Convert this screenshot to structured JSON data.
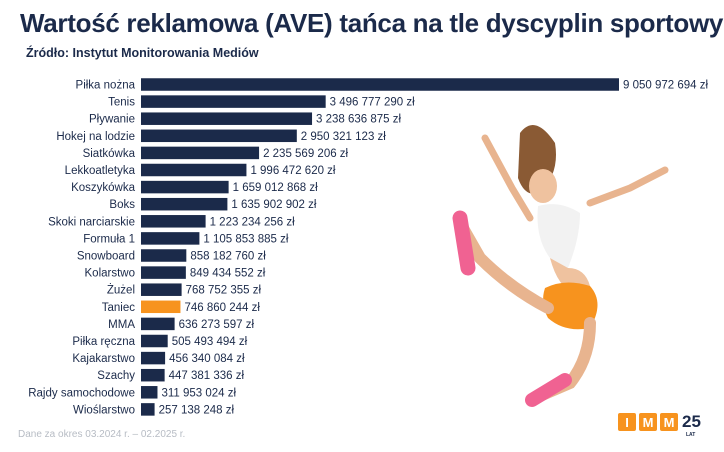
{
  "title": "Wartość reklamowa (AVE) tańca na tle dyscyplin sportowych",
  "subtitle": "Źródło: Instytut Monitorowania Mediów",
  "footnote": "Dane za okres 03.2024 r. – 02.2025 r.",
  "logo": {
    "letters": [
      "I",
      "M",
      "M"
    ],
    "number": "25",
    "suffix": "LAT"
  },
  "colors": {
    "bar": "#1b2a4a",
    "highlight": "#f7931e",
    "text": "#1b2a4a",
    "brand": "#f7931e"
  },
  "chart_data": {
    "type": "bar",
    "orientation": "horizontal",
    "value_format": "space-thousands + zł",
    "highlight": "Taniec",
    "categories": [
      "Piłka nożna",
      "Tenis",
      "Pływanie",
      "Hokej na lodzie",
      "Siatkówka",
      "Lekkoatletyka",
      "Koszykówka",
      "Boks",
      "Skoki narciarskie",
      "Formuła 1",
      "Snowboard",
      "Kolarstwo",
      "Żużel",
      "Taniec",
      "MMA",
      "Piłka ręczna",
      "Kajakarstwo",
      "Szachy",
      "Rajdy samochodowe",
      "Wioślarstwo"
    ],
    "values": [
      9050972694,
      3496777290,
      3238636875,
      2950321123,
      2235569206,
      1996472620,
      1659012868,
      1635902902,
      1223234256,
      1105853885,
      858182760,
      849434552,
      768752355,
      746860244,
      636273597,
      505493494,
      456340084,
      447381336,
      311953024,
      257138248
    ],
    "labels": [
      "9 050 972 694 zł",
      "3 496 777 290 zł",
      "3 238 636 875 zł",
      "2 950 321 123 zł",
      "2 235 569 206 zł",
      "1 996 472 620 zł",
      "1 659 012 868 zł",
      "1 635 902 902 zł",
      "1 223 234 256 zł",
      "1 105 853 885 zł",
      "858 182 760 zł",
      "849 434 552 zł",
      "768 752 355 zł",
      "746 860 244 zł",
      "636 273 597 zł",
      "505 493 494 zł",
      "456 340 084 zł",
      "447 381 336 zł",
      "311 953 024 zł",
      "257 138 248 zł"
    ],
    "xlim": [
      0,
      9050972694
    ],
    "grid": false,
    "legend": "none"
  }
}
